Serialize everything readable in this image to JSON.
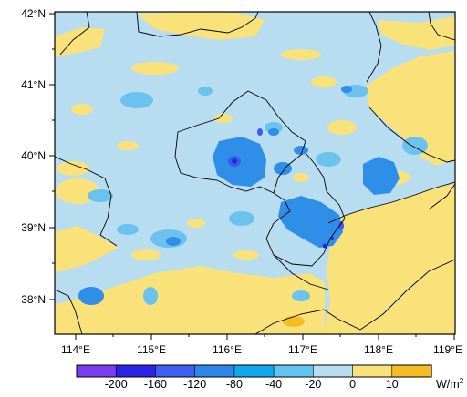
{
  "map": {
    "lat_ticks": [
      "42°N",
      "41°N",
      "40°N",
      "39°N",
      "38°N"
    ],
    "lon_ticks": [
      "114°E",
      "115°E",
      "116°E",
      "117°E",
      "118°E",
      "119°E"
    ],
    "colors": {
      "background_light_blue": "#b8dcf0",
      "yellow": "#fae27a",
      "sky": "#6bc2ee",
      "mid_blue": "#2f8fe8",
      "deep_blue": "#3a5bf0",
      "navy": "#1e2fd8"
    }
  },
  "colorbar": {
    "colors": [
      "#7a3df0",
      "#2b22e6",
      "#3c5ff2",
      "#2f86ea",
      "#12a6ea",
      "#60c3f0",
      "#b8dcf0",
      "#fae27a",
      "#f5bd24"
    ],
    "labels": [
      "-200",
      "-160",
      "-120",
      "-80",
      "-40",
      "-20",
      "0",
      "10"
    ],
    "unit": "W/m",
    "unit_sup": "2"
  }
}
